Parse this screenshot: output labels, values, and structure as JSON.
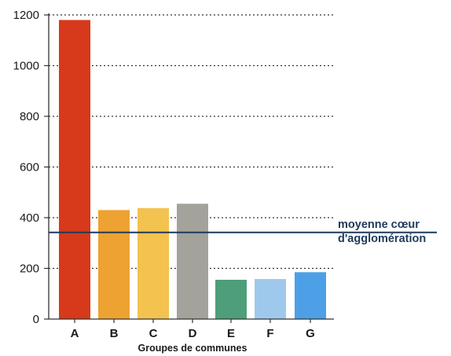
{
  "chart_data": {
    "type": "bar",
    "categories": [
      "A",
      "B",
      "C",
      "D",
      "E",
      "F",
      "G"
    ],
    "values": [
      1180,
      430,
      438,
      455,
      155,
      158,
      185
    ],
    "bar_colors": [
      "#d63a1a",
      "#eea231",
      "#f3c24f",
      "#a3a39c",
      "#4e9e7a",
      "#9fc9ec",
      "#4da0e6"
    ],
    "ylim": [
      0,
      1200
    ],
    "yticks": [
      0,
      200,
      400,
      600,
      800,
      1000,
      1200
    ],
    "ytick_labels": [
      "0",
      "200",
      "400",
      "600",
      "800",
      "1000",
      "1200"
    ],
    "xlabel": "Groupes de communes",
    "ylabel": "",
    "title": "",
    "grid": "horizontal dotted",
    "reference_line": {
      "value": 342,
      "label_line1": "moyenne cœur",
      "label_line2": "d'agglomération",
      "color": "#1f3a5a"
    }
  }
}
